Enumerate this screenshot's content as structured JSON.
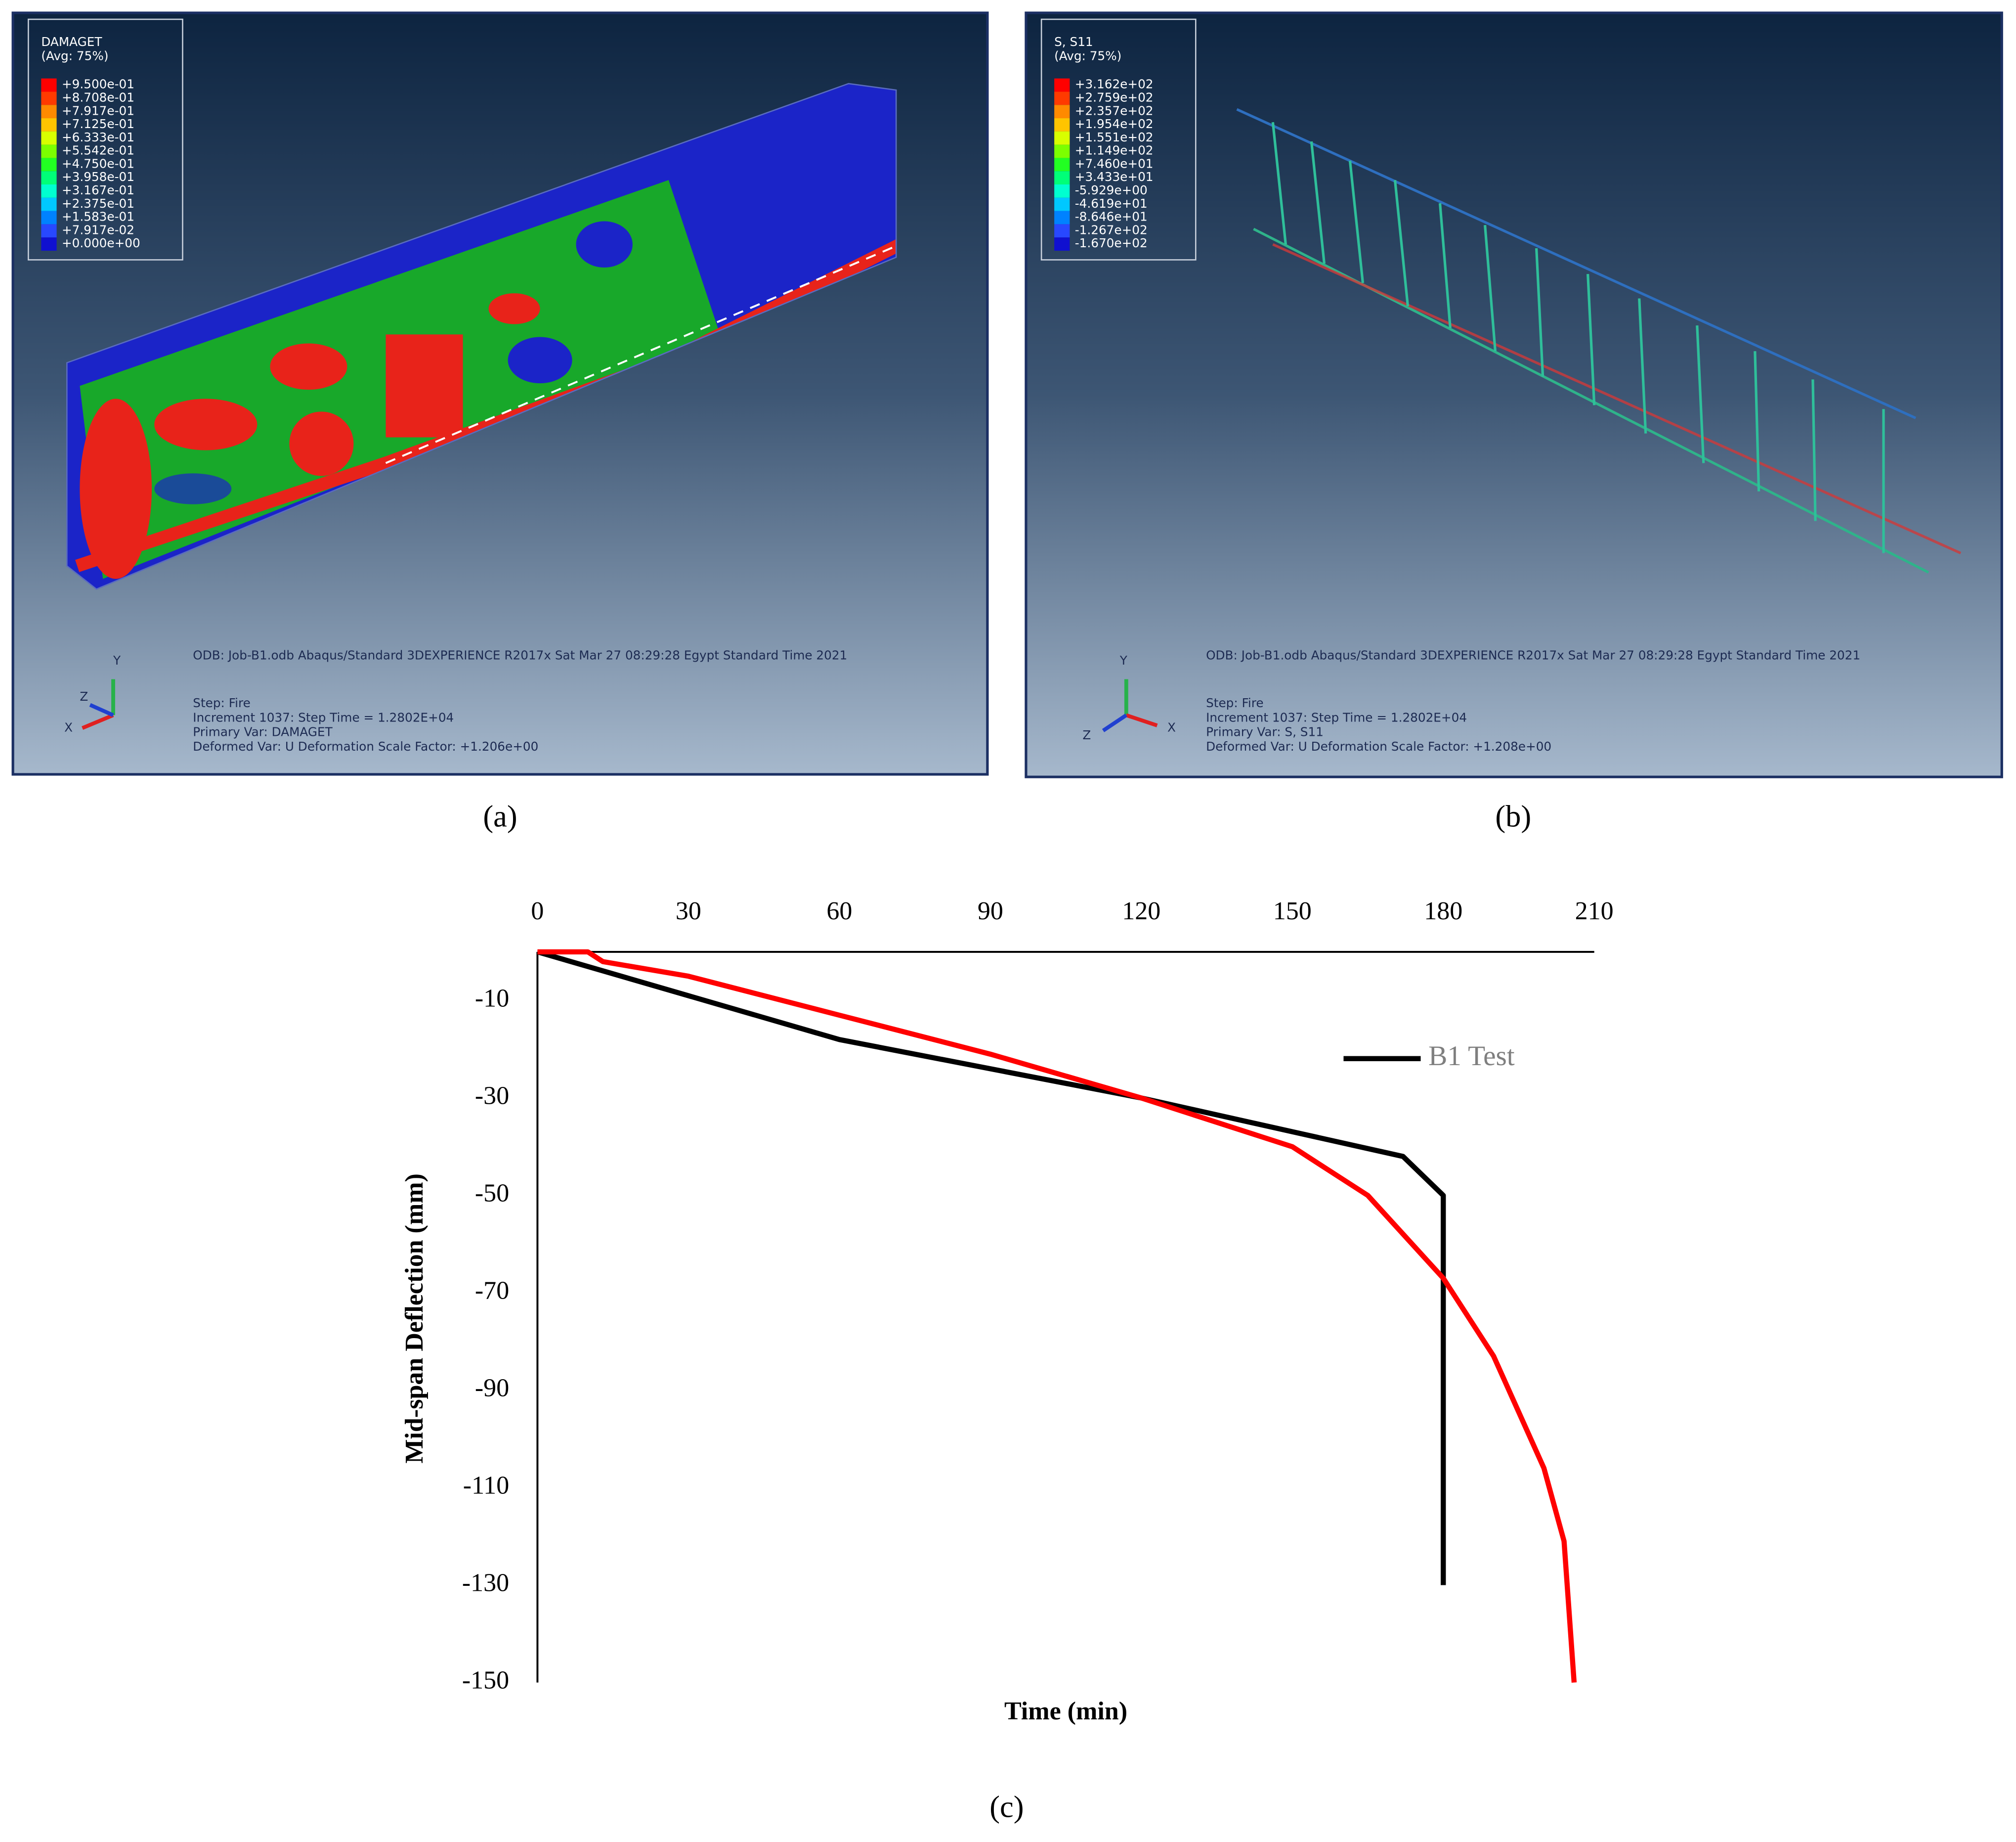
{
  "panels": [
    {
      "caption": "(a)",
      "legend_title": "DAMAGET",
      "legend_avg": "(Avg: 75%)",
      "legend_values": [
        "+9.500e-01",
        "+8.708e-01",
        "+7.917e-01",
        "+7.125e-01",
        "+6.333e-01",
        "+5.542e-01",
        "+4.750e-01",
        "+3.958e-01",
        "+3.167e-01",
        "+2.375e-01",
        "+1.583e-01",
        "+7.917e-02",
        "+0.000e+00"
      ],
      "odb_line": "ODB: Job-B1.odb    Abaqus/Standard 3DEXPERIENCE R2017x    Sat Mar 27 08:29:28 Egypt Standard Time 2021",
      "step": "Step: Fire",
      "increment": "Increment    1037: Step Time =    1.2802E+04",
      "primary_var": "Primary Var: DAMAGET",
      "deformed_var": "Deformed Var: U   Deformation Scale Factor: +1.206e+00",
      "axis_y": "Y",
      "axis_z": "Z",
      "axis_x": "X"
    },
    {
      "caption": "(b)",
      "legend_title": "S, S11",
      "legend_avg": "(Avg: 75%)",
      "legend_values": [
        "+3.162e+02",
        "+2.759e+02",
        "+2.357e+02",
        "+1.954e+02",
        "+1.551e+02",
        "+1.149e+02",
        "+7.460e+01",
        "+3.433e+01",
        "-5.929e+00",
        "-4.619e+01",
        "-8.646e+01",
        "-1.267e+02",
        "-1.670e+02"
      ],
      "odb_line": "ODB: Job-B1.odb    Abaqus/Standard 3DEXPERIENCE R2017x    Sat Mar 27 08:29:28 Egypt Standard Time 2021",
      "step": "Step: Fire",
      "increment": "Increment    1037: Step Time =    1.2802E+04",
      "primary_var": "Primary Var: S, S11",
      "deformed_var": "Deformed Var: U   Deformation Scale Factor: +1.208e+00",
      "axis_y": "Y",
      "axis_z": "Z",
      "axis_x": "X"
    }
  ],
  "chart_data": {
    "type": "line",
    "caption": "(c)",
    "x_label": "Time (min)",
    "y_label": "Mid-span Deflection (mm)",
    "xlim": [
      0,
      210
    ],
    "xticks": [
      0,
      30,
      60,
      90,
      120,
      150,
      180,
      210
    ],
    "ylim": [
      -150,
      0
    ],
    "yticks": [
      -10,
      -30,
      -50,
      -70,
      -90,
      -110,
      -130,
      -150
    ],
    "grid": false,
    "legend": "upper-right",
    "series": [
      {
        "name": "B1 Test",
        "color": "#000000",
        "x": [
          0,
          60,
          120,
          172,
          180,
          180
        ],
        "values": [
          0,
          -18,
          -30,
          -42,
          -50,
          -130
        ]
      },
      {
        "color": "#ff0000",
        "x": [
          0,
          10,
          13,
          30,
          60,
          90,
          120,
          150,
          165,
          180,
          190,
          200,
          204,
          206
        ],
        "values": [
          0,
          0,
          -2,
          -5,
          -13,
          -21,
          -30,
          -40,
          -50,
          -67,
          -83,
          -106,
          -121,
          -150
        ]
      }
    ]
  }
}
